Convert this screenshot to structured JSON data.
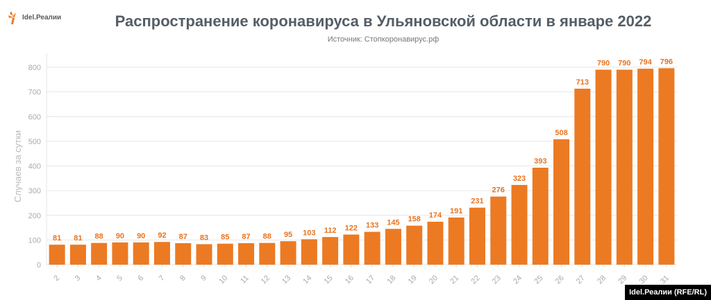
{
  "logo": {
    "text": "Idel.Реалии"
  },
  "footer": {
    "credit": "Idel.Реалии (RFE/RL)"
  },
  "colors": {
    "bar": "#ec7a23",
    "label": "#e8731e",
    "title": "#555e66"
  },
  "chart_data": {
    "type": "bar",
    "title": "Распространение коронавируса в Ульяновской области в январе 2022",
    "subtitle": "Источник: Стопкоронавирус.рф",
    "xlabel": "",
    "ylabel": "Случаев за сутки",
    "ylim": [
      0,
      800
    ],
    "yticks": [
      0,
      100,
      200,
      300,
      400,
      500,
      600,
      700,
      800
    ],
    "grid": true,
    "categories": [
      "2",
      "3",
      "4",
      "5",
      "6",
      "7",
      "8",
      "9",
      "10",
      "11",
      "12",
      "13",
      "14",
      "15",
      "16",
      "17",
      "18",
      "19",
      "20",
      "21",
      "22",
      "23",
      "24",
      "25",
      "26",
      "27",
      "28",
      "29",
      "30",
      "31"
    ],
    "values": [
      81,
      81,
      88,
      90,
      90,
      92,
      87,
      83,
      85,
      87,
      88,
      95,
      103,
      112,
      122,
      133,
      145,
      158,
      174,
      191,
      231,
      276,
      323,
      393,
      508,
      713,
      790,
      790,
      794,
      796
    ]
  }
}
